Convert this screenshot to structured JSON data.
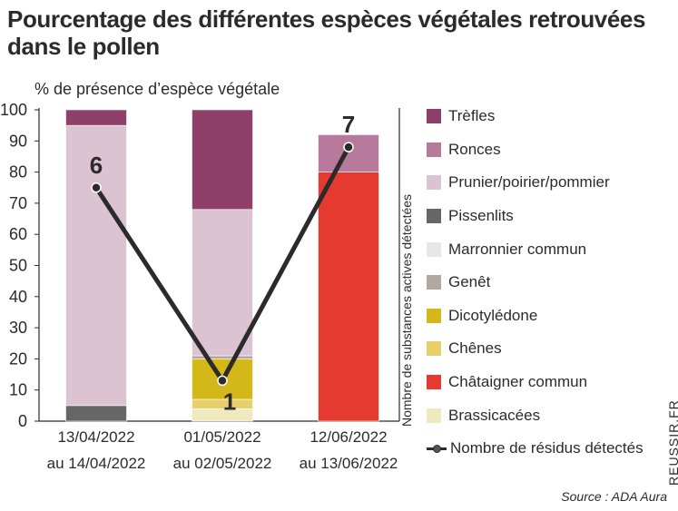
{
  "chart_data": {
    "type": "bar",
    "title": "Pourcentage des différentes espèces végétales retrouvées dans le pollen",
    "ylabel": "% de présence d’espèce végétale",
    "y2label": "Nombre de substances actives détectées",
    "ylim": [
      0,
      100
    ],
    "yticks": [
      "0",
      "10",
      "20",
      "30",
      "40",
      "50",
      "60",
      "70",
      "80",
      "90",
      "100"
    ],
    "categories": [
      {
        "line1": "13/04/2022",
        "line2": "au 14/04/2022"
      },
      {
        "line1": "01/05/2022",
        "line2": "au 02/05/2022"
      },
      {
        "line1": "12/06/2022",
        "line2": "au 13/06/2022"
      }
    ],
    "series": [
      {
        "name": "Trèfles",
        "color": "#8e3f6a",
        "values": [
          5,
          32,
          0
        ]
      },
      {
        "name": "Ronces",
        "color": "#b87a9c",
        "values": [
          0,
          0,
          12
        ]
      },
      {
        "name": "Prunier/poirier/pommier",
        "color": "#dcc3d1",
        "values": [
          90,
          47,
          0
        ]
      },
      {
        "name": "Pissenlits",
        "color": "#666666",
        "values": [
          5,
          0,
          0
        ]
      },
      {
        "name": "Marronnier commun",
        "color": "#e8e6e6",
        "values": [
          0,
          0,
          0
        ]
      },
      {
        "name": "Genêt",
        "color": "#b3a89d",
        "values": [
          0,
          1,
          0
        ]
      },
      {
        "name": "Dicotylédone",
        "color": "#d4b81a",
        "values": [
          0,
          13,
          0
        ]
      },
      {
        "name": "Chênes",
        "color": "#e7cf6a",
        "values": [
          0,
          3,
          0
        ]
      },
      {
        "name": "Châtaigner commun",
        "color": "#e53a30",
        "values": [
          0,
          0,
          80
        ]
      },
      {
        "name": "Brassicacées",
        "color": "#f0e8bf",
        "values": [
          0,
          4,
          0
        ]
      }
    ],
    "line": {
      "name": "Nombre de résidus détectés",
      "color": "#2b2b2b",
      "values": [
        6,
        1,
        7
      ],
      "labels": [
        "6",
        "1",
        "7"
      ],
      "plotted_at_percent": [
        75,
        13,
        88
      ]
    },
    "legend_position": "right",
    "grid": false
  },
  "watermark": "REUSSIR.FR",
  "source": "Source : ADA Aura"
}
